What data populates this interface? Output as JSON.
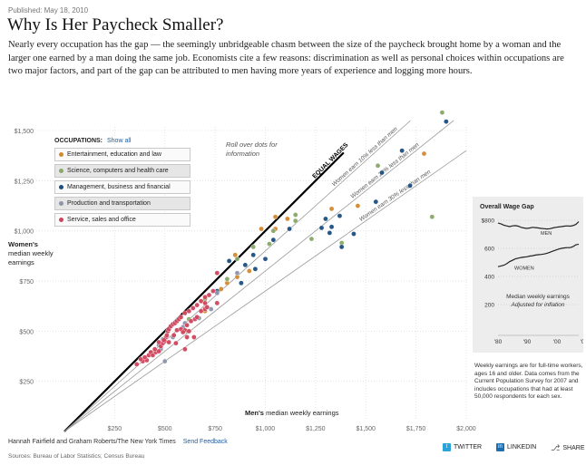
{
  "header": {
    "published": "Published: May 18, 2010",
    "title": "Why Is Her Paycheck Smaller?",
    "intro": "Nearly every occupation has the gap — the seemingly unbridgeable chasm between the size of the paycheck brought home by a woman and the larger one earned by a man doing the same job. Economists cite a few reasons: discrimination as well as personal choices within occupations are two major factors, and part of the gap can be attributed to men having more years of experience and logging more hours."
  },
  "legend": {
    "heading": "OCCUPATIONS:",
    "show_all": "Show all",
    "items": [
      {
        "label": "Entertainment, education and law",
        "color": "#d4892f"
      },
      {
        "label": "Science, computers and health care",
        "color": "#8aa867"
      },
      {
        "label": "Management, business and financial",
        "color": "#1c4f80"
      },
      {
        "label": "Production and transportation",
        "color": "#8d95ad"
      },
      {
        "label": "Service, sales and office",
        "color": "#d0455c"
      }
    ]
  },
  "rollover_hint": "Roll over dots for information",
  "axes": {
    "y_label_bold": "Women's",
    "y_label_rest": "median weekly earnings",
    "x_label_bold": "Men's",
    "x_label_rest": "median weekly earnings"
  },
  "inset": {
    "title": "Overall Wage Gap",
    "men_label": "MEN",
    "women_label": "WOMEN",
    "note": "Median weekly earnings",
    "note_italic": "Adjusted for inflation",
    "y_ticks": [
      "$800",
      "600",
      "400",
      "200"
    ],
    "x_ticks": [
      "'80",
      "'90",
      "'00",
      "'08"
    ],
    "men_series": [
      780,
      775,
      765,
      760,
      755,
      760,
      762,
      758,
      750,
      745,
      742,
      745,
      750,
      748,
      745,
      742,
      740,
      738,
      740,
      745,
      750,
      752,
      755,
      758,
      760,
      758,
      762,
      770,
      790
    ],
    "women_series": [
      470,
      475,
      480,
      490,
      505,
      515,
      525,
      530,
      535,
      538,
      540,
      545,
      548,
      552,
      555,
      557,
      560,
      565,
      572,
      580,
      588,
      595,
      600,
      603,
      605,
      605,
      612,
      625,
      630
    ]
  },
  "footnote": "Weekly earnings are for full-time workers, ages 16 and older. Data comes from the Current Population Survey for 2007 and includes occupations that had at least 50,000 respondents for each sex.",
  "credit": "Hannah Fairfield and Graham Roberts/The New York Times",
  "feedback": "Send Feedback",
  "sources": "Sources: Bureau of Labor Statistics; Census Bureau",
  "share": {
    "twitter": "TWITTER",
    "linkedin": "LINKEDIN",
    "share": "SHARE"
  },
  "chart_data": {
    "type": "scatter",
    "xlabel": "Men's median weekly earnings",
    "ylabel": "Women's median weekly earnings",
    "xlim": [
      0,
      2000
    ],
    "ylim": [
      0,
      1500
    ],
    "x_ticks": [
      "$250",
      "$500",
      "$750",
      "$1,000",
      "$1,250",
      "$1,500",
      "$1,750",
      "$2,000"
    ],
    "y_ticks": [
      "$250",
      "$500",
      "$750",
      "$1,000",
      "$1,250",
      "$1,500"
    ],
    "reference_lines": [
      {
        "label": "EQUAL WAGES",
        "ratio": 1.0
      },
      {
        "label": "Women earn 10% less than men",
        "ratio": 0.9
      },
      {
        "label": "Women earn 20% less than men",
        "ratio": 0.8
      },
      {
        "label": "Women earn 30% less than men",
        "ratio": 0.7
      }
    ],
    "series": [
      {
        "name": "Entertainment, education and law",
        "color": "#d4892f",
        "points": [
          [
            1790,
            1385
          ],
          [
            1050,
            1010
          ],
          [
            920,
            800
          ],
          [
            1050,
            1070
          ],
          [
            700,
            600
          ],
          [
            850,
            880
          ],
          [
            980,
            1010
          ],
          [
            810,
            740
          ],
          [
            860,
            770
          ],
          [
            780,
            710
          ],
          [
            1110,
            1060
          ],
          [
            1330,
            1110
          ],
          [
            1460,
            1125
          ]
        ]
      },
      {
        "name": "Science, computers and health care",
        "color": "#8aa867",
        "points": [
          [
            1880,
            1590
          ],
          [
            1560,
            1325
          ],
          [
            1150,
            1080
          ],
          [
            1150,
            1050
          ],
          [
            1040,
            1000
          ],
          [
            940,
            920
          ],
          [
            860,
            860
          ],
          [
            810,
            760
          ],
          [
            760,
            690
          ],
          [
            700,
            660
          ],
          [
            620,
            560
          ],
          [
            1380,
            940
          ],
          [
            1230,
            960
          ],
          [
            1830,
            1070
          ],
          [
            1020,
            935
          ],
          [
            610,
            500
          ]
        ]
      },
      {
        "name": "Management, business and financial",
        "color": "#1c4f80",
        "points": [
          [
            1900,
            1545
          ],
          [
            1680,
            1400
          ],
          [
            1580,
            1290
          ],
          [
            1720,
            1225
          ],
          [
            1550,
            1145
          ],
          [
            1370,
            1075
          ],
          [
            1300,
            1060
          ],
          [
            1120,
            1010
          ],
          [
            1280,
            1015
          ],
          [
            1330,
            1020
          ],
          [
            1320,
            990
          ],
          [
            1440,
            985
          ],
          [
            1380,
            920
          ],
          [
            1040,
            955
          ],
          [
            940,
            880
          ],
          [
            1000,
            860
          ],
          [
            900,
            830
          ],
          [
            950,
            810
          ],
          [
            820,
            850
          ],
          [
            760,
            700
          ],
          [
            880,
            740
          ]
        ]
      },
      {
        "name": "Production and transportation",
        "color": "#8d95ad",
        "points": [
          [
            470,
            430
          ],
          [
            490,
            460
          ],
          [
            600,
            540
          ],
          [
            730,
            610
          ],
          [
            670,
            565
          ],
          [
            500,
            350
          ],
          [
            430,
            390
          ],
          [
            540,
            470
          ],
          [
            480,
            410
          ],
          [
            760,
            690
          ],
          [
            860,
            790
          ],
          [
            590,
            520
          ]
        ]
      },
      {
        "name": "Service, sales and office",
        "color": "#d0455c",
        "points": [
          [
            360,
            335
          ],
          [
            390,
            350
          ],
          [
            410,
            355
          ],
          [
            420,
            380
          ],
          [
            430,
            395
          ],
          [
            440,
            380
          ],
          [
            455,
            395
          ],
          [
            470,
            400
          ],
          [
            480,
            425
          ],
          [
            490,
            440
          ],
          [
            500,
            450
          ],
          [
            505,
            470
          ],
          [
            510,
            480
          ],
          [
            515,
            500
          ],
          [
            520,
            510
          ],
          [
            530,
            525
          ],
          [
            540,
            535
          ],
          [
            550,
            540
          ],
          [
            560,
            550
          ],
          [
            570,
            560
          ],
          [
            580,
            570
          ],
          [
            600,
            590
          ],
          [
            620,
            600
          ],
          [
            640,
            615
          ],
          [
            660,
            630
          ],
          [
            680,
            650
          ],
          [
            700,
            670
          ],
          [
            720,
            680
          ],
          [
            740,
            700
          ],
          [
            520,
            445
          ],
          [
            545,
            480
          ],
          [
            560,
            505
          ],
          [
            580,
            510
          ],
          [
            600,
            505
          ],
          [
            610,
            530
          ],
          [
            630,
            550
          ],
          [
            650,
            560
          ],
          [
            680,
            600
          ],
          [
            700,
            610
          ],
          [
            380,
            360
          ],
          [
            400,
            370
          ],
          [
            450,
            410
          ],
          [
            470,
            445
          ],
          [
            495,
            455
          ],
          [
            555,
            440
          ],
          [
            600,
            410
          ],
          [
            645,
            470
          ],
          [
            620,
            500
          ],
          [
            610,
            470
          ],
          [
            710,
            620
          ],
          [
            760,
            640
          ],
          [
            660,
            570
          ],
          [
            590,
            495
          ],
          [
            700,
            640
          ],
          [
            760,
            790
          ]
        ]
      }
    ]
  }
}
